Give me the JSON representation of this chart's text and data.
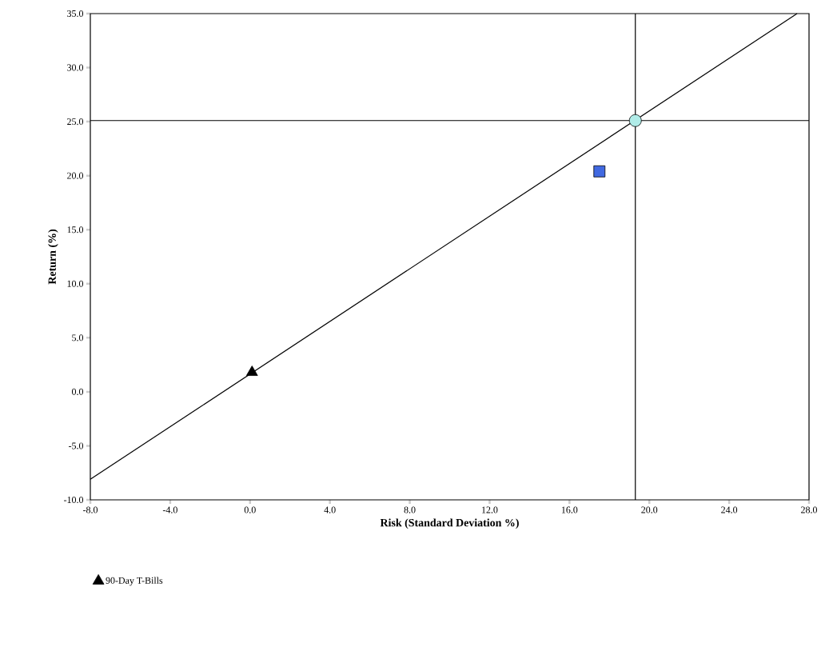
{
  "chart_data": {
    "type": "scatter",
    "xlabel": "Risk (Standard Deviation %)",
    "ylabel": "Return (%)",
    "xlim": [
      -8,
      28
    ],
    "ylim": [
      -10,
      35
    ],
    "xticks": [
      {
        "value": -8,
        "label": "-8.0"
      },
      {
        "value": -4,
        "label": "-4.0"
      },
      {
        "value": 0,
        "label": "0.0"
      },
      {
        "value": 4,
        "label": "4.0"
      },
      {
        "value": 8,
        "label": "8.0"
      },
      {
        "value": 12,
        "label": "12.0"
      },
      {
        "value": 16,
        "label": "16.0"
      },
      {
        "value": 20,
        "label": "20.0"
      },
      {
        "value": 24,
        "label": "24.0"
      },
      {
        "value": 28,
        "label": "28.0"
      }
    ],
    "yticks": [
      {
        "value": -10,
        "label": "-10.0"
      },
      {
        "value": -5,
        "label": "-5.0"
      },
      {
        "value": 0,
        "label": "0.0"
      },
      {
        "value": 5,
        "label": "5.0"
      },
      {
        "value": 10,
        "label": "10.0"
      },
      {
        "value": 15,
        "label": "15.0"
      },
      {
        "value": 20,
        "label": "20.0"
      },
      {
        "value": 25,
        "label": "25.0"
      },
      {
        "value": 30,
        "label": "30.0"
      },
      {
        "value": 35,
        "label": "35.0"
      }
    ],
    "legend": "bottom",
    "series": [
      {
        "type": "line",
        "x": [
          -8,
          27.4
        ],
        "values": [
          -8.1,
          35
        ],
        "color": "#000000",
        "marker": "none"
      },
      {
        "x": [
          17.5
        ],
        "values": [
          20.4
        ],
        "color": "#4169e1",
        "marker": "square"
      },
      {
        "x": [
          19.3
        ],
        "values": [
          25.1
        ],
        "color": "#b0ece8",
        "marker": "circle"
      },
      {
        "name": "90-Day T-Bills",
        "x": [
          0.1
        ],
        "values": [
          1.8
        ],
        "color": "#000000",
        "marker": "triangle"
      }
    ],
    "ref_lines": [
      {
        "axis": "x",
        "value": 19.3
      },
      {
        "axis": "y",
        "value": 25.1
      }
    ]
  }
}
